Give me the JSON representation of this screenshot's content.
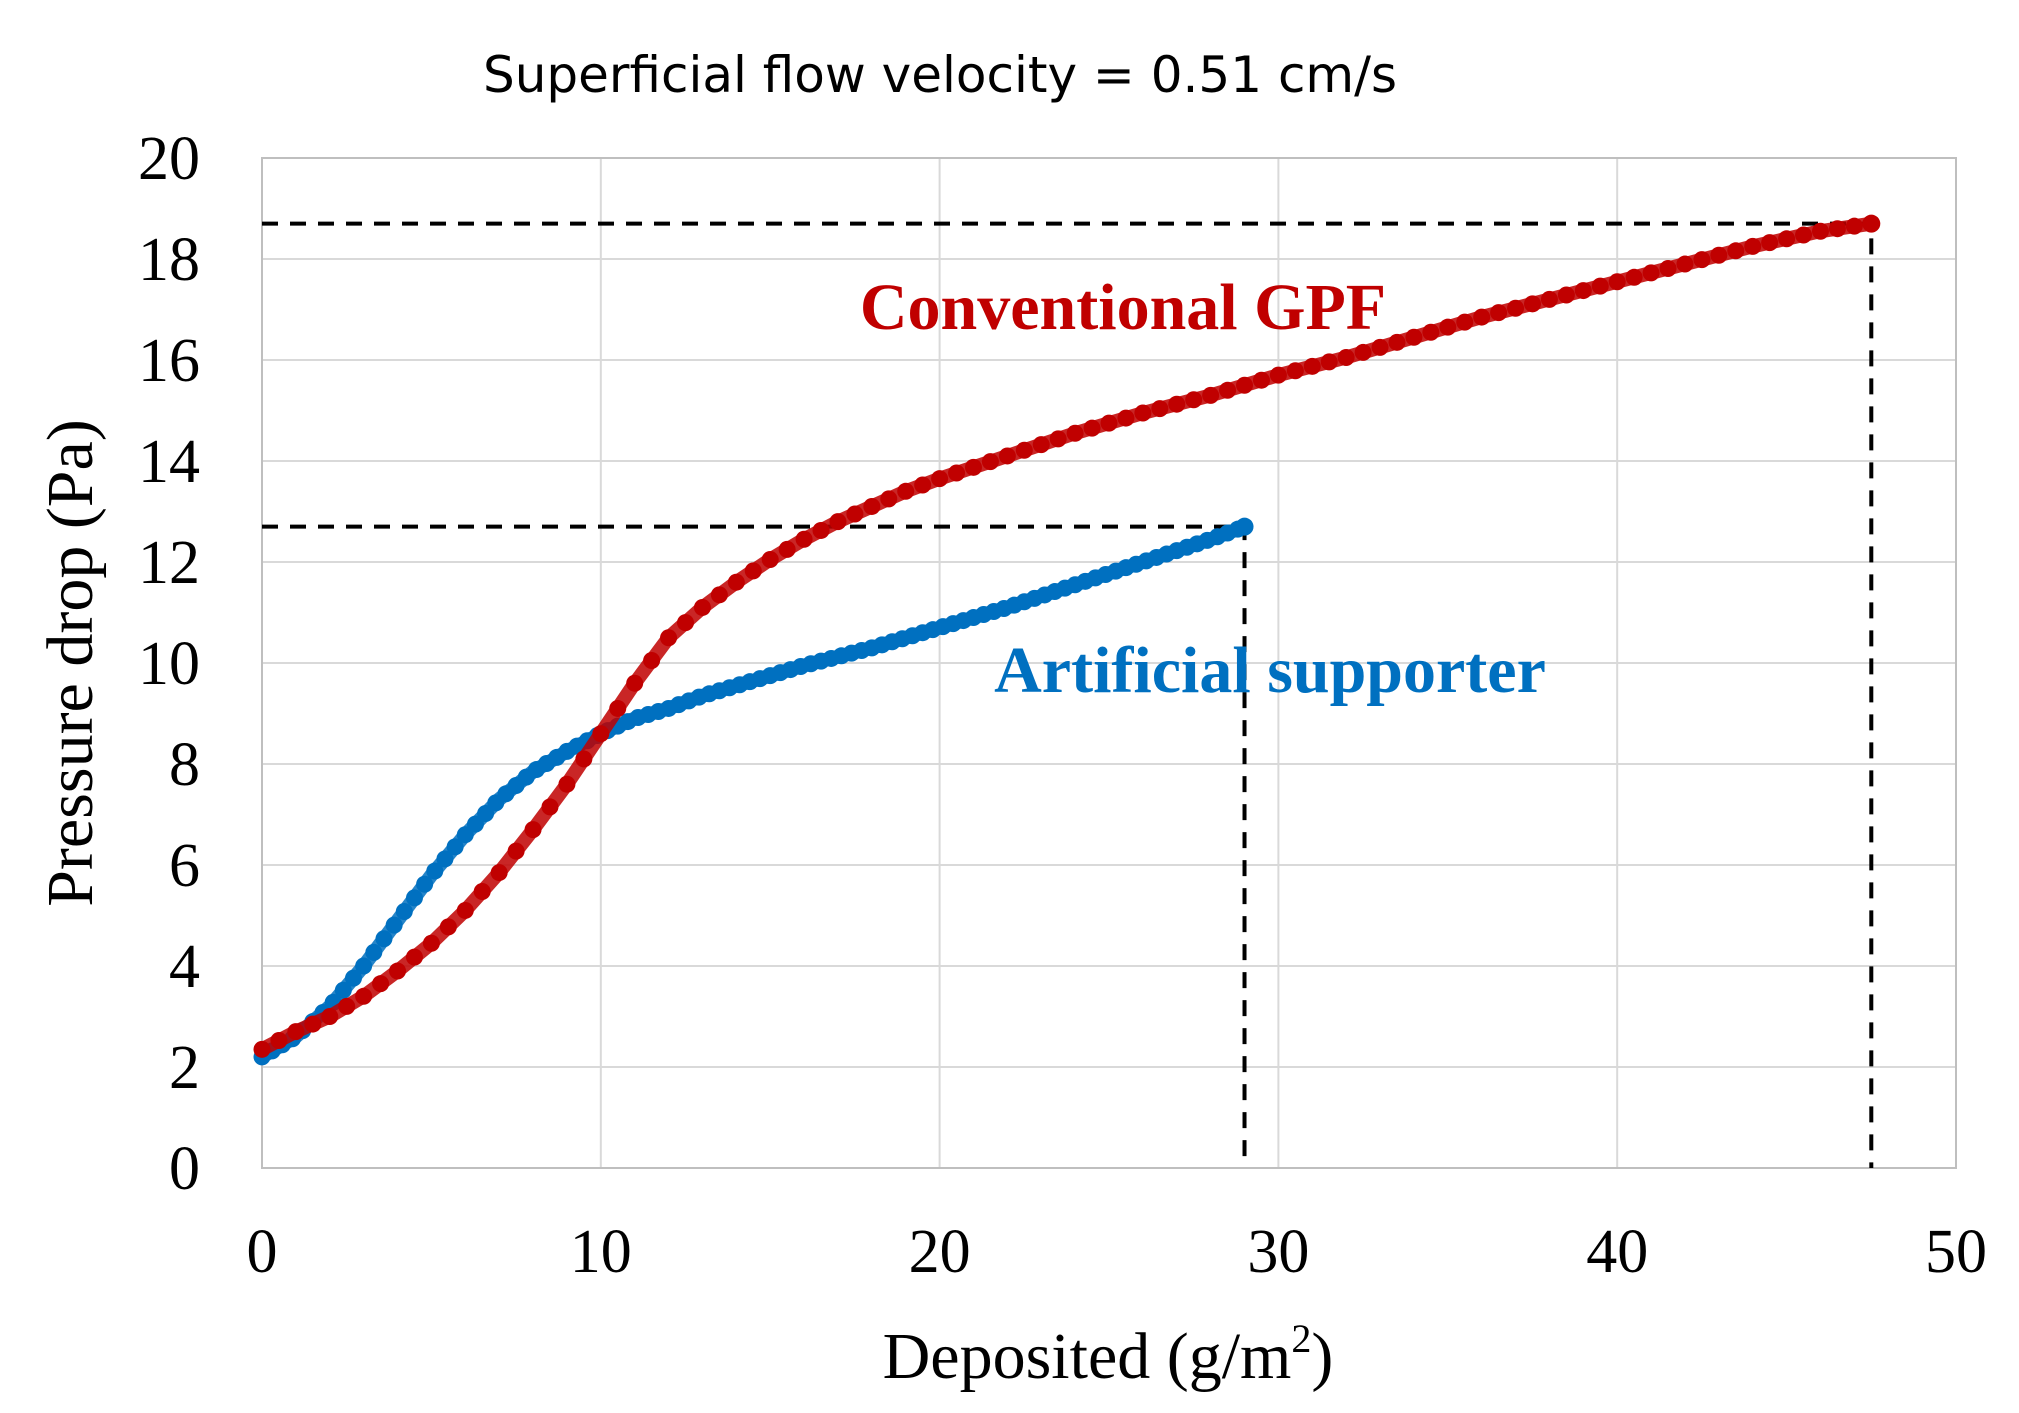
{
  "chart_data": {
    "type": "scatter",
    "title": "Superficial flow velocity = 0.51 cm/s",
    "xlabel": "Deposited (g/m",
    "xlabel_superscript": "2",
    "xlabel_suffix": ")",
    "ylabel": "Pressure drop (Pa)",
    "xlim": [
      0,
      50
    ],
    "ylim": [
      0,
      20
    ],
    "xticks": [
      "0",
      "10",
      "20",
      "30",
      "40",
      "50"
    ],
    "yticks": [
      "0",
      "2",
      "4",
      "6",
      "8",
      "10",
      "12",
      "14",
      "16",
      "18",
      "20"
    ],
    "grid": true,
    "series": [
      {
        "name": "Conventional GPF",
        "color": "#c00000",
        "marker": "circle",
        "x": [
          0,
          1,
          2,
          3,
          4,
          5,
          6,
          7,
          8,
          9,
          10,
          11,
          12,
          13,
          14,
          15,
          16,
          17,
          18,
          19,
          20,
          22,
          24,
          26,
          28,
          30,
          32,
          34,
          36,
          38,
          40,
          42,
          44,
          46,
          47.5
        ],
        "y": [
          2.35,
          2.7,
          3.0,
          3.4,
          3.9,
          4.45,
          5.1,
          5.85,
          6.7,
          7.6,
          8.6,
          9.6,
          10.5,
          11.1,
          11.6,
          12.05,
          12.45,
          12.8,
          13.1,
          13.4,
          13.65,
          14.1,
          14.55,
          14.95,
          15.3,
          15.7,
          16.05,
          16.45,
          16.85,
          17.2,
          17.55,
          17.9,
          18.25,
          18.55,
          18.7
        ],
        "reference": {
          "x": 47.5,
          "y": 18.7
        }
      },
      {
        "name": "Artificial supporter",
        "color": "#0070c0",
        "marker": "circle",
        "x": [
          0,
          1,
          2,
          3,
          4,
          5,
          6,
          7,
          8,
          9,
          10,
          11,
          12,
          13,
          14,
          15,
          16,
          18,
          20,
          22,
          24,
          26,
          28,
          29
        ],
        "y": [
          2.2,
          2.6,
          3.2,
          4.0,
          4.9,
          5.8,
          6.6,
          7.3,
          7.85,
          8.25,
          8.6,
          8.9,
          9.1,
          9.35,
          9.55,
          9.75,
          9.95,
          10.3,
          10.7,
          11.1,
          11.55,
          12.0,
          12.45,
          12.7
        ],
        "reference": {
          "x": 29,
          "y": 12.7
        }
      }
    ]
  }
}
